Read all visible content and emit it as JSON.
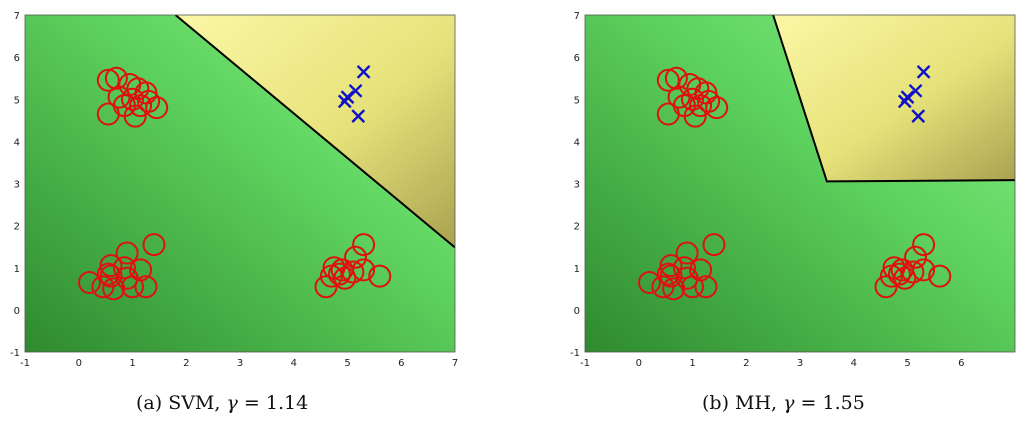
{
  "chart_data": [
    {
      "type": "scatter",
      "method": "SVM",
      "caption": {
        "label": "(a) SVM,",
        "gamma_symbol": "γ",
        "equals": "=",
        "gamma_value": "1.14"
      },
      "xlim": [
        -1,
        7
      ],
      "ylim": [
        -1,
        7
      ],
      "xticks": [
        "-1",
        "0",
        "1",
        "2",
        "3",
        "4",
        "5",
        "6",
        "7"
      ],
      "yticks": [
        "-1",
        "0",
        "1",
        "2",
        "3",
        "4",
        "5",
        "6",
        "7"
      ],
      "colors": {
        "region_negative": "#5fd45f",
        "region_positive": "#e6e27a",
        "circle": "#e01010",
        "cross": "#1010c8",
        "boundary": "#000000"
      },
      "boundary": [
        [
          1.8,
          7
        ],
        [
          7,
          1.48
        ]
      ],
      "series": [
        {
          "marker": "circle",
          "points": [
            [
              0.55,
              5.45
            ],
            [
              0.7,
              5.5
            ],
            [
              0.95,
              5.35
            ],
            [
              1.1,
              5.25
            ],
            [
              1.25,
              5.15
            ],
            [
              0.75,
              5.05
            ],
            [
              1.0,
              5.0
            ],
            [
              1.3,
              4.95
            ],
            [
              0.85,
              4.85
            ],
            [
              1.15,
              4.85
            ],
            [
              1.45,
              4.8
            ],
            [
              0.55,
              4.65
            ],
            [
              1.05,
              4.6
            ],
            [
              1.4,
              1.55
            ],
            [
              0.9,
              1.35
            ],
            [
              0.6,
              1.05
            ],
            [
              0.85,
              1.0
            ],
            [
              1.15,
              0.95
            ],
            [
              0.55,
              0.85
            ],
            [
              0.9,
              0.75
            ],
            [
              0.2,
              0.65
            ],
            [
              0.45,
              0.55
            ],
            [
              0.65,
              0.5
            ],
            [
              1.0,
              0.55
            ],
            [
              1.25,
              0.55
            ],
            [
              0.6,
              0.8
            ],
            [
              5.3,
              1.55
            ],
            [
              5.15,
              1.25
            ],
            [
              4.75,
              1.0
            ],
            [
              4.9,
              0.95
            ],
            [
              5.1,
              0.9
            ],
            [
              5.3,
              0.95
            ],
            [
              4.7,
              0.8
            ],
            [
              4.95,
              0.75
            ],
            [
              5.6,
              0.8
            ],
            [
              4.6,
              0.55
            ],
            [
              4.85,
              0.85
            ]
          ]
        },
        {
          "marker": "x",
          "points": [
            [
              5.3,
              5.65
            ],
            [
              5.15,
              5.2
            ],
            [
              5.0,
              5.05
            ],
            [
              4.95,
              4.95
            ],
            [
              5.2,
              4.6
            ]
          ]
        }
      ]
    },
    {
      "type": "scatter",
      "method": "MH",
      "caption": {
        "label": "(b) MH,",
        "gamma_symbol": "γ",
        "equals": "=",
        "gamma_value": "1.55"
      },
      "xlim": [
        -1,
        7
      ],
      "ylim": [
        -1,
        7
      ],
      "xticks": [
        "-1",
        "0",
        "1",
        "2",
        "3",
        "4",
        "5",
        "6"
      ],
      "yticks": [
        "-1",
        "0",
        "1",
        "2",
        "3",
        "4",
        "5",
        "6",
        "7"
      ],
      "colors": {
        "region_negative": "#5fd45f",
        "region_positive": "#e6e27a",
        "circle": "#e01010",
        "cross": "#1010c8",
        "boundary": "#000000"
      },
      "boundary": [
        [
          2.5,
          7
        ],
        [
          3.5,
          3.05
        ],
        [
          7,
          3.08
        ]
      ],
      "series": [
        {
          "marker": "circle",
          "points": [
            [
              0.55,
              5.45
            ],
            [
              0.7,
              5.5
            ],
            [
              0.95,
              5.35
            ],
            [
              1.1,
              5.25
            ],
            [
              1.25,
              5.15
            ],
            [
              0.75,
              5.05
            ],
            [
              1.0,
              5.0
            ],
            [
              1.3,
              4.95
            ],
            [
              0.85,
              4.85
            ],
            [
              1.15,
              4.85
            ],
            [
              1.45,
              4.8
            ],
            [
              0.55,
              4.65
            ],
            [
              1.05,
              4.6
            ],
            [
              1.4,
              1.55
            ],
            [
              0.9,
              1.35
            ],
            [
              0.6,
              1.05
            ],
            [
              0.85,
              1.0
            ],
            [
              1.15,
              0.95
            ],
            [
              0.55,
              0.85
            ],
            [
              0.9,
              0.75
            ],
            [
              0.2,
              0.65
            ],
            [
              0.45,
              0.55
            ],
            [
              0.65,
              0.5
            ],
            [
              1.0,
              0.55
            ],
            [
              1.25,
              0.55
            ],
            [
              0.6,
              0.8
            ],
            [
              5.3,
              1.55
            ],
            [
              5.15,
              1.25
            ],
            [
              4.75,
              1.0
            ],
            [
              4.9,
              0.95
            ],
            [
              5.1,
              0.9
            ],
            [
              5.3,
              0.95
            ],
            [
              4.7,
              0.8
            ],
            [
              4.95,
              0.75
            ],
            [
              5.6,
              0.8
            ],
            [
              4.6,
              0.55
            ],
            [
              4.85,
              0.85
            ]
          ]
        },
        {
          "marker": "x",
          "points": [
            [
              5.3,
              5.65
            ],
            [
              5.15,
              5.2
            ],
            [
              5.0,
              5.05
            ],
            [
              4.95,
              4.95
            ],
            [
              5.2,
              4.6
            ]
          ]
        }
      ]
    }
  ]
}
